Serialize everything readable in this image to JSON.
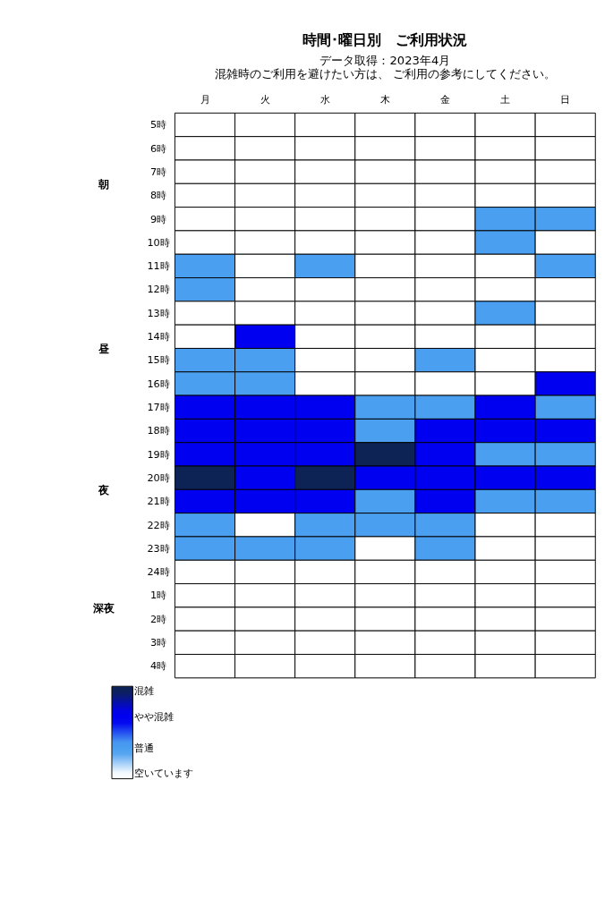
{
  "chart_data": {
    "type": "heatmap",
    "title": "時間･曜日別　ご利用状況",
    "subtitle": "データ取得：2023年4月",
    "annotations": [
      "混雑時のご利用を避けたい方は、 ご利用の参考にしてください。"
    ],
    "categories": [
      "月",
      "火",
      "水",
      "木",
      "金",
      "土",
      "日"
    ],
    "y_categories": [
      "5時",
      "6時",
      "7時",
      "8時",
      "9時",
      "10時",
      "11時",
      "12時",
      "13時",
      "14時",
      "15時",
      "16時",
      "17時",
      "18時",
      "19時",
      "20時",
      "21時",
      "22時",
      "23時",
      "24時",
      "1時",
      "2時",
      "3時",
      "4時"
    ],
    "y2_categories": [
      null,
      null,
      "朝",
      null,
      null,
      null,
      null,
      null,
      null,
      "昼",
      null,
      null,
      null,
      null,
      null,
      "夜",
      null,
      null,
      null,
      null,
      "深夜",
      null,
      null,
      null
    ],
    "cells": [
      [
        0,
        0,
        0,
        0,
        0,
        0,
        0
      ],
      [
        0,
        0,
        0,
        0,
        0,
        0,
        0
      ],
      [
        0,
        0,
        0,
        0,
        0,
        0,
        0
      ],
      [
        0,
        0,
        0,
        0,
        0,
        0,
        0
      ],
      [
        0,
        0,
        0,
        0,
        0,
        1,
        1
      ],
      [
        0,
        0,
        0,
        0,
        0,
        1,
        0
      ],
      [
        1,
        0,
        1,
        0,
        0,
        0,
        1
      ],
      [
        1,
        0,
        0,
        0,
        0,
        0,
        0
      ],
      [
        0,
        0,
        0,
        0,
        0,
        1,
        0
      ],
      [
        0,
        2,
        0,
        0,
        0,
        0,
        0
      ],
      [
        1,
        1,
        0,
        0,
        1,
        0,
        0
      ],
      [
        1,
        1,
        0,
        0,
        0,
        0,
        2
      ],
      [
        2,
        2,
        2,
        1,
        1,
        2,
        1
      ],
      [
        2,
        2,
        2,
        1,
        2,
        2,
        2
      ],
      [
        2,
        2,
        2,
        3,
        2,
        1,
        1
      ],
      [
        3,
        2,
        3,
        2,
        2,
        2,
        2
      ],
      [
        2,
        2,
        2,
        1,
        2,
        1,
        1
      ],
      [
        1,
        0,
        1,
        1,
        1,
        0,
        0
      ],
      [
        1,
        1,
        1,
        0,
        1,
        0,
        0
      ],
      [
        0,
        0,
        0,
        0,
        0,
        0,
        0
      ],
      [
        0,
        0,
        0,
        0,
        0,
        0,
        0
      ],
      [
        0,
        0,
        0,
        0,
        0,
        0,
        0
      ],
      [
        0,
        0,
        0,
        0,
        0,
        0,
        0
      ],
      [
        0,
        0,
        0,
        0,
        0,
        0,
        0
      ]
    ],
    "clim": [
      0,
      3
    ],
    "cticks": [
      {
        "value": 0,
        "label": "空いています"
      },
      {
        "value": 1,
        "label": "普通"
      },
      {
        "value": 2,
        "label": "やや混雑"
      },
      {
        "value": 3,
        "label": "混雑"
      }
    ],
    "colors": [
      "#ffffff",
      "#4a9ff0",
      "#0000f0",
      "#0d2255"
    ]
  }
}
